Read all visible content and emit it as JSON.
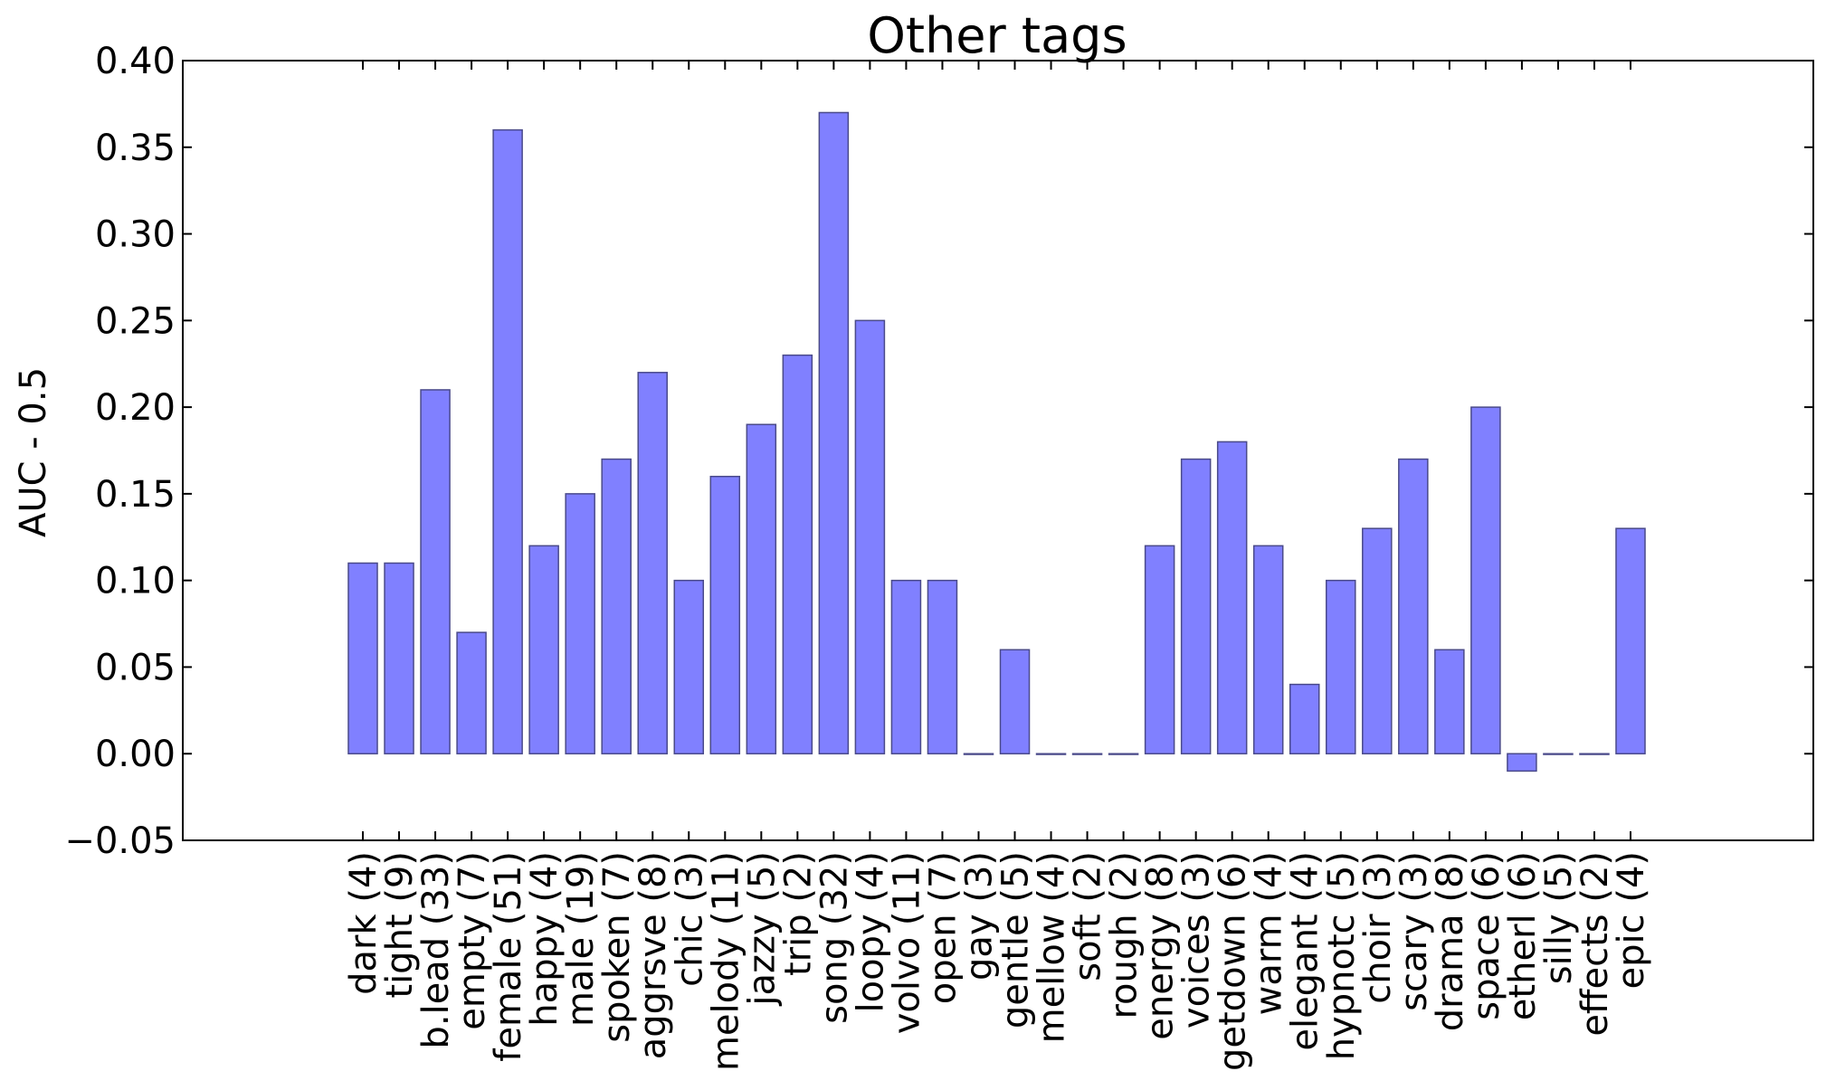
{
  "chart_data": {
    "type": "bar",
    "title": "Other tags",
    "xlabel": "",
    "ylabel": "AUC - 0.5",
    "ylim": [
      -0.05,
      0.4
    ],
    "yticks": [
      "−0.05",
      "0.00",
      "0.05",
      "0.10",
      "0.15",
      "0.20",
      "0.25",
      "0.30",
      "0.35",
      "0.40"
    ],
    "bar_color": "#8080ff",
    "grid": false,
    "categories": [
      "dark (4)",
      "tight (9)",
      "b.lead (33)",
      "empty (7)",
      "female (51)",
      "happy (4)",
      "male (19)",
      "spoken (7)",
      "aggrsve (8)",
      "chic (3)",
      "melody (11)",
      "jazzy (5)",
      "trip (2)",
      "song (32)",
      "loopy (4)",
      "volvo (11)",
      "open (7)",
      "gay (3)",
      "gentle (5)",
      "mellow (4)",
      "soft (2)",
      "rough (2)",
      "energy (8)",
      "voices (3)",
      "getdown (6)",
      "warm (4)",
      "elegant (4)",
      "hypnotc (5)",
      "choir (3)",
      "scary (3)",
      "drama (8)",
      "space (6)",
      "etherl (6)",
      "silly (5)",
      "effects (2)",
      "epic (4)"
    ],
    "values": [
      0.11,
      0.11,
      0.21,
      0.07,
      0.36,
      0.12,
      0.15,
      0.17,
      0.22,
      0.1,
      0.16,
      0.19,
      0.23,
      0.37,
      0.25,
      0.1,
      0.1,
      0.0,
      0.06,
      0.0,
      0.0,
      0.0,
      0.12,
      0.17,
      0.18,
      0.12,
      0.04,
      0.1,
      0.13,
      0.17,
      0.06,
      0.2,
      -0.01,
      0.0,
      0.0,
      0.13
    ]
  }
}
